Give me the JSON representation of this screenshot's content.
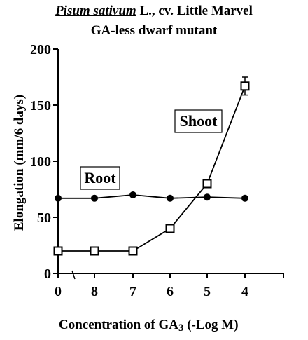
{
  "title": {
    "species": "Pisum sativum",
    "rest": " L., cv. Little Marvel",
    "subtitle": "GA-less dwarf mutant"
  },
  "axes": {
    "xlabel_prefix": "Concentration of  GA",
    "xlabel_sub": "3",
    "xlabel_suffix": " (-Log M)",
    "ylabel": "Elongation (mm/6 days)"
  },
  "chart_data": {
    "type": "line",
    "categories": [
      "0",
      "8",
      "7",
      "6",
      "5",
      "4"
    ],
    "x_axis_break": "between 0 and 8",
    "series": [
      {
        "name": "Root",
        "marker": "filled-circle",
        "values": [
          67,
          67,
          70,
          67,
          68,
          67
        ]
      },
      {
        "name": "Shoot",
        "marker": "open-square",
        "values": [
          20,
          20,
          20,
          40,
          80,
          167
        ]
      }
    ],
    "error_bars": {
      "series": "Shoot",
      "category": "4",
      "plus_minus": 8
    },
    "ylim": [
      0,
      200
    ],
    "yticks": [
      "0",
      "50",
      "100",
      "150",
      "200"
    ],
    "grid": false,
    "series_labels": [
      "Root",
      "Shoot"
    ],
    "colors": {
      "line": "#000000",
      "background": "#ffffff"
    }
  }
}
